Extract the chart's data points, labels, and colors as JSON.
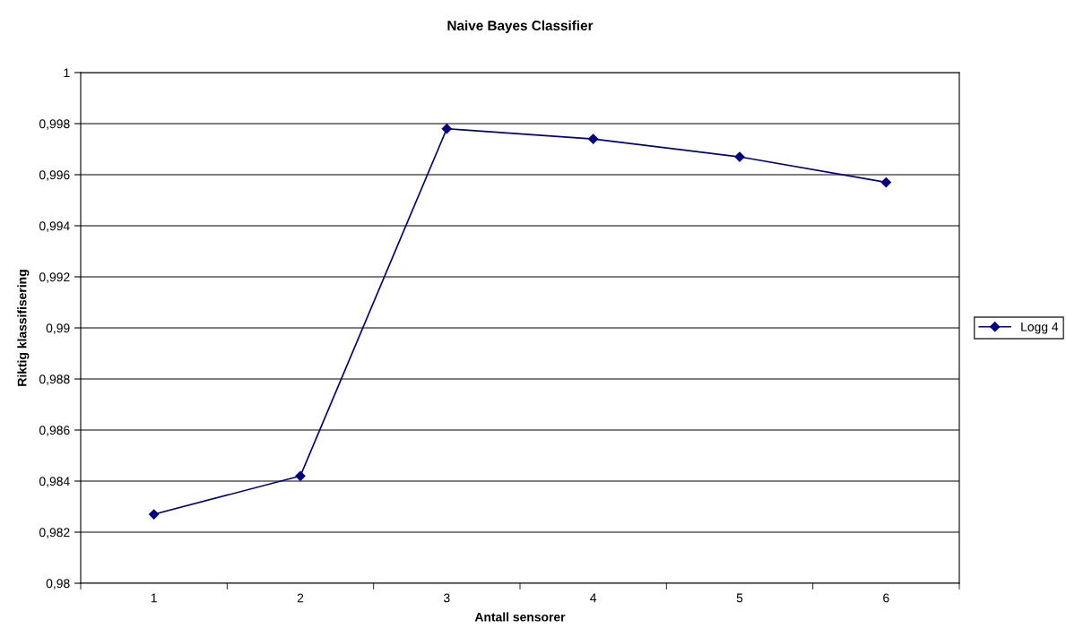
{
  "chart_data": {
    "type": "line",
    "title": "Naive Bayes Classifier",
    "xlabel": "Antall sensorer",
    "ylabel": "Riktig klassifisering",
    "categories": [
      "1",
      "2",
      "3",
      "4",
      "5",
      "6"
    ],
    "series": [
      {
        "name": "Logg 4",
        "color": "#000080",
        "values": [
          0.9827,
          0.9842,
          0.9978,
          0.9974,
          0.9967,
          0.9957
        ]
      }
    ],
    "ylim": [
      0.98,
      1
    ],
    "yticks": [
      {
        "value": 0.98,
        "label": "0,98"
      },
      {
        "value": 0.982,
        "label": "0,982"
      },
      {
        "value": 0.984,
        "label": "0,984"
      },
      {
        "value": 0.986,
        "label": "0,986"
      },
      {
        "value": 0.988,
        "label": "0,988"
      },
      {
        "value": 0.99,
        "label": "0,99"
      },
      {
        "value": 0.992,
        "label": "0,992"
      },
      {
        "value": 0.994,
        "label": "0,994"
      },
      {
        "value": 0.996,
        "label": "0,996"
      },
      {
        "value": 0.998,
        "label": "0,998"
      },
      {
        "value": 1,
        "label": "1"
      }
    ],
    "grid": "y",
    "legend": "right",
    "marker": "diamond",
    "line_style": "solid"
  }
}
